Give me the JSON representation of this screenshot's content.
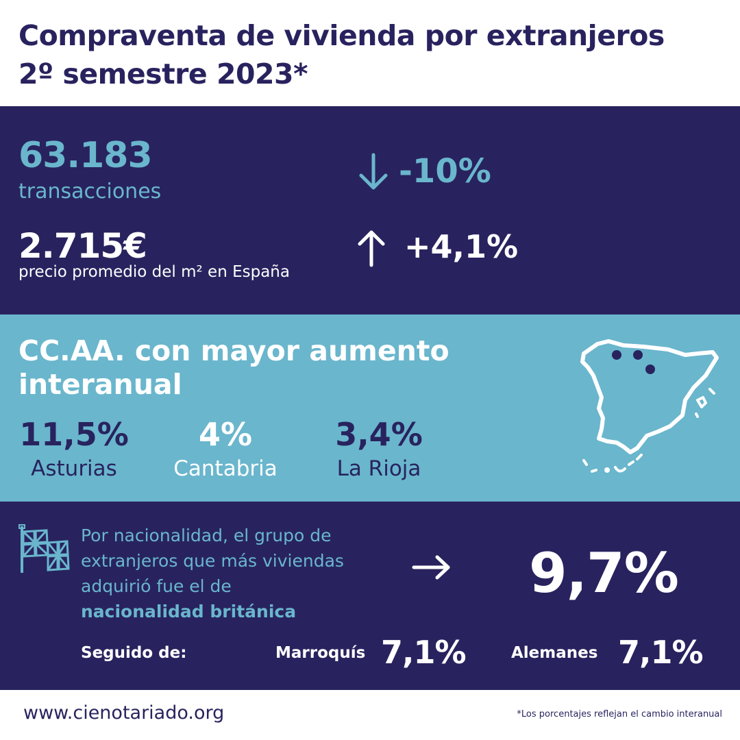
{
  "header": {
    "title": "Compraventa de vivienda por extranjeros 2º semestre 2023*"
  },
  "summary": {
    "transactions_value": "63.183",
    "transactions_label": "transacciones",
    "transactions_change": "-10%",
    "price_value": "2.715€",
    "price_label": "precio promedio del m² en España",
    "price_change": "+4,1%"
  },
  "regions": {
    "title": "CC.AA. con mayor aumento interanual",
    "items": [
      {
        "pct": "11,5%",
        "name": "Asturias"
      },
      {
        "pct": "4%",
        "name": "Cantabria"
      },
      {
        "pct": "3,4%",
        "name": "La Rioja"
      }
    ]
  },
  "nationality": {
    "text_prefix": "Por nacionalidad, el grupo de extranjeros que más viviendas adquirió fue el de ",
    "text_highlight": "nacionalidad británica",
    "main_pct": "9,7%",
    "followed_label": "Seguido de:",
    "second_label": "Marroquís",
    "second_pct": "7,1%",
    "third_label": "Alemanes",
    "third_pct": "7,1%"
  },
  "footer": {
    "website": "www.cienotariado.org",
    "footnote": "*Los porcentajes reflejan el cambio interanual"
  },
  "colors": {
    "navy": "#28235e",
    "light_blue": "#6ab6cd",
    "white": "#ffffff"
  },
  "icons": [
    "arrow-down-icon",
    "arrow-up-icon",
    "spain-map-icon",
    "british-flag-icon",
    "arrow-right-icon"
  ]
}
